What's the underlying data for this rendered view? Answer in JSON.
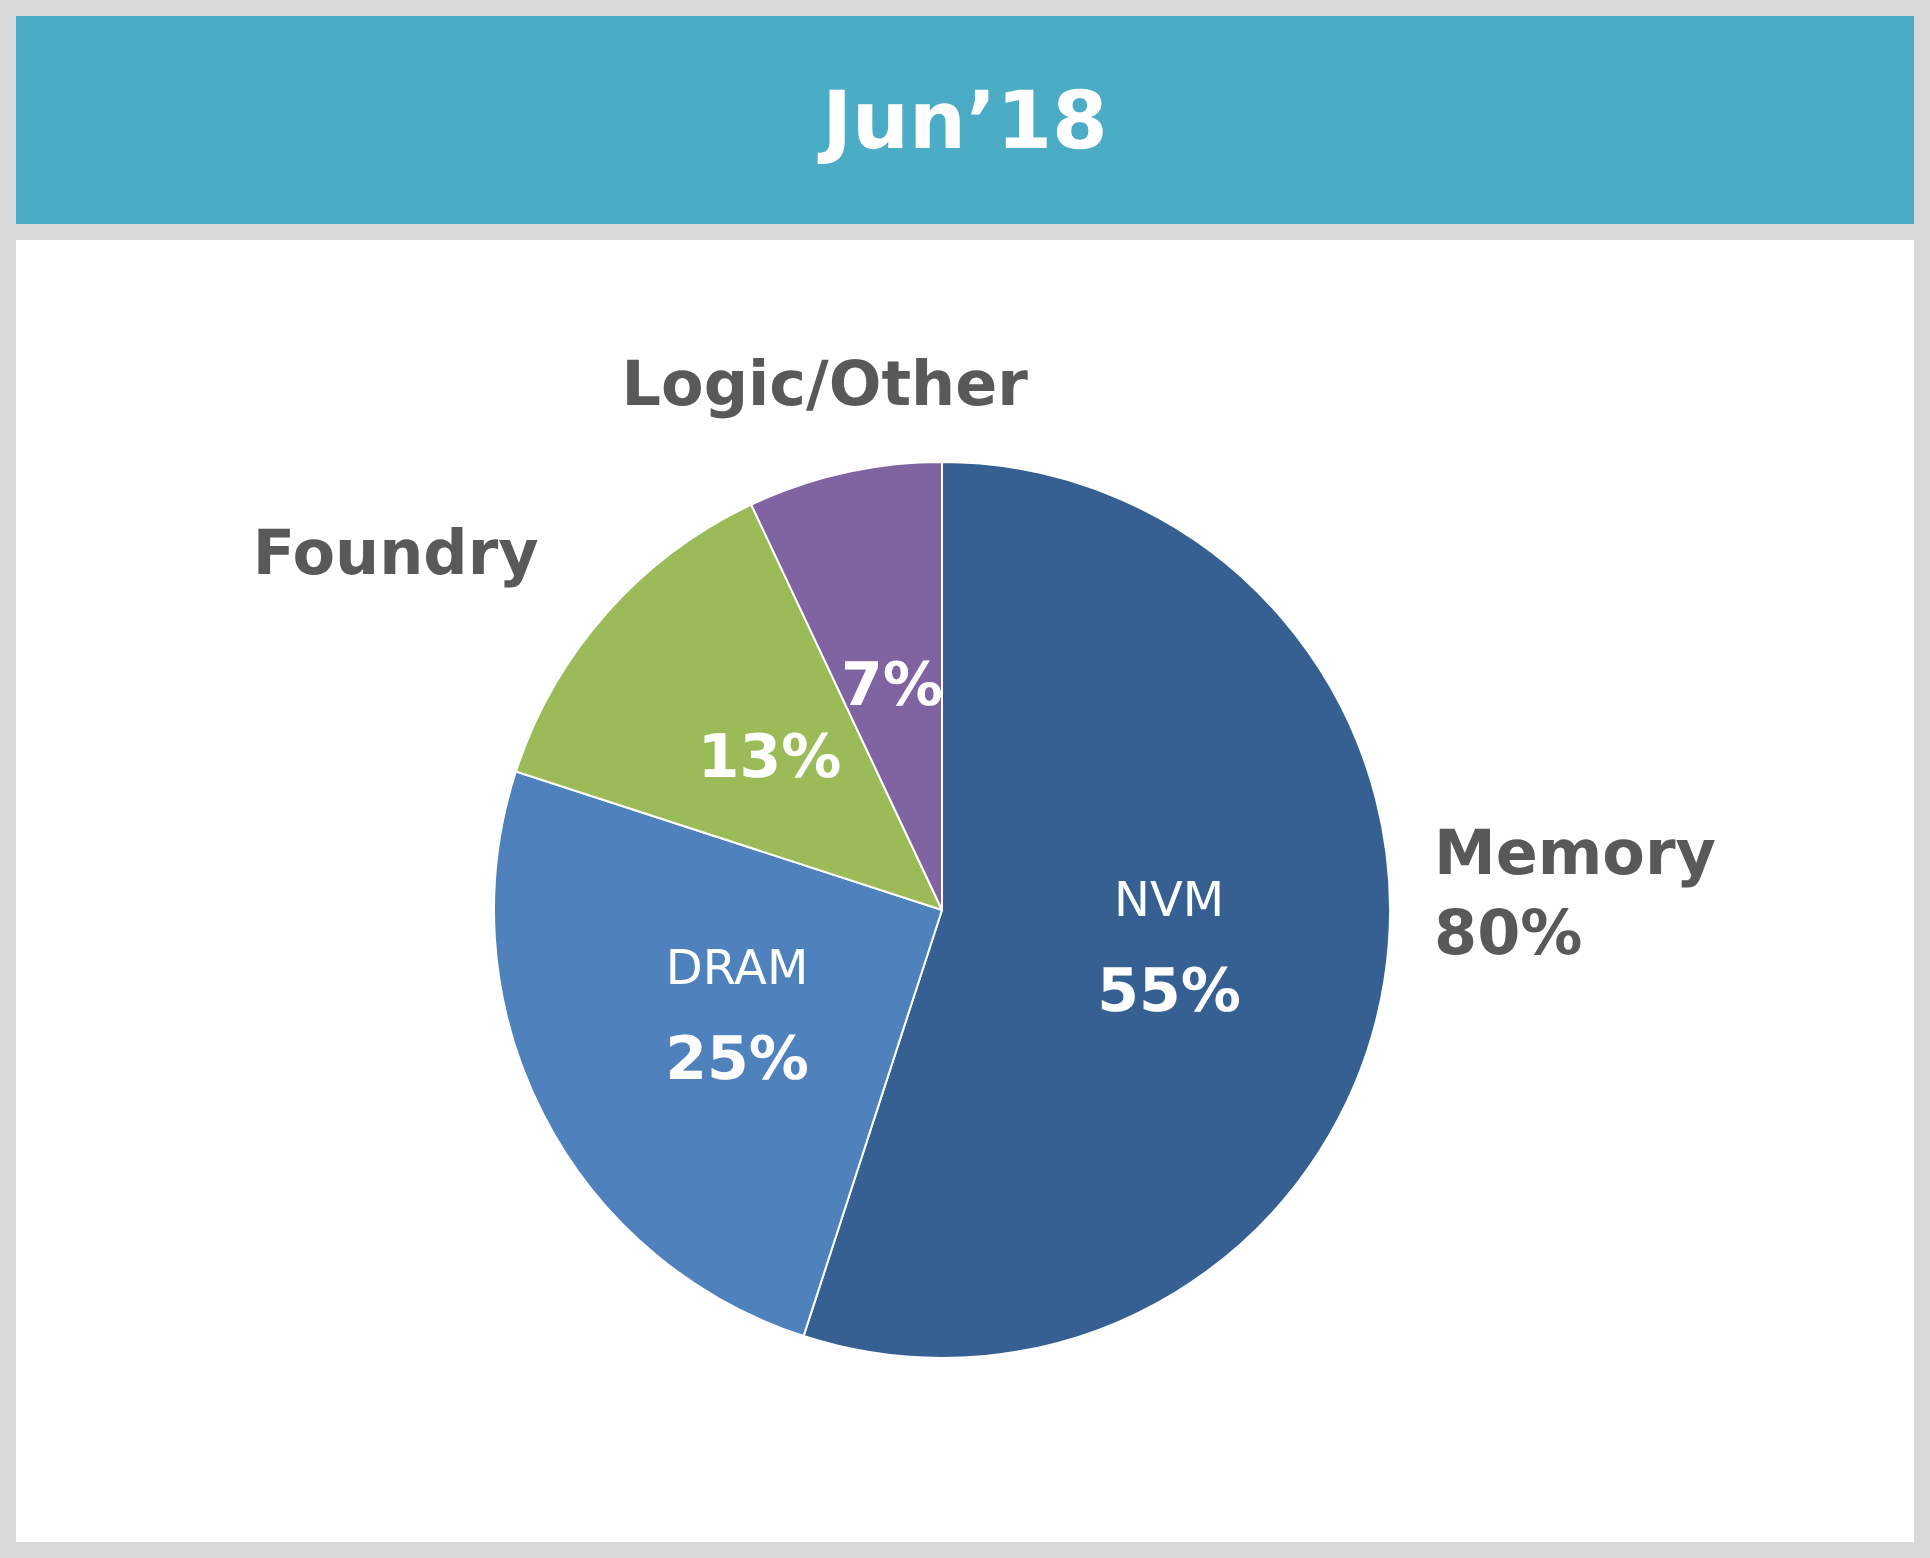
{
  "chart_data": {
    "type": "pie",
    "title": "Jun’18",
    "categories": [
      "NVM",
      "DRAM",
      "Foundry",
      "Logic/Other"
    ],
    "values": [
      55,
      25,
      13,
      7
    ],
    "value_labels": [
      "55%",
      "25%",
      "13%",
      "7%"
    ],
    "colors": [
      "#366092",
      "#4f81bd",
      "#9bbb59",
      "#8064a2"
    ],
    "annotations": [
      "Memory 80%"
    ],
    "legend": false
  }
}
